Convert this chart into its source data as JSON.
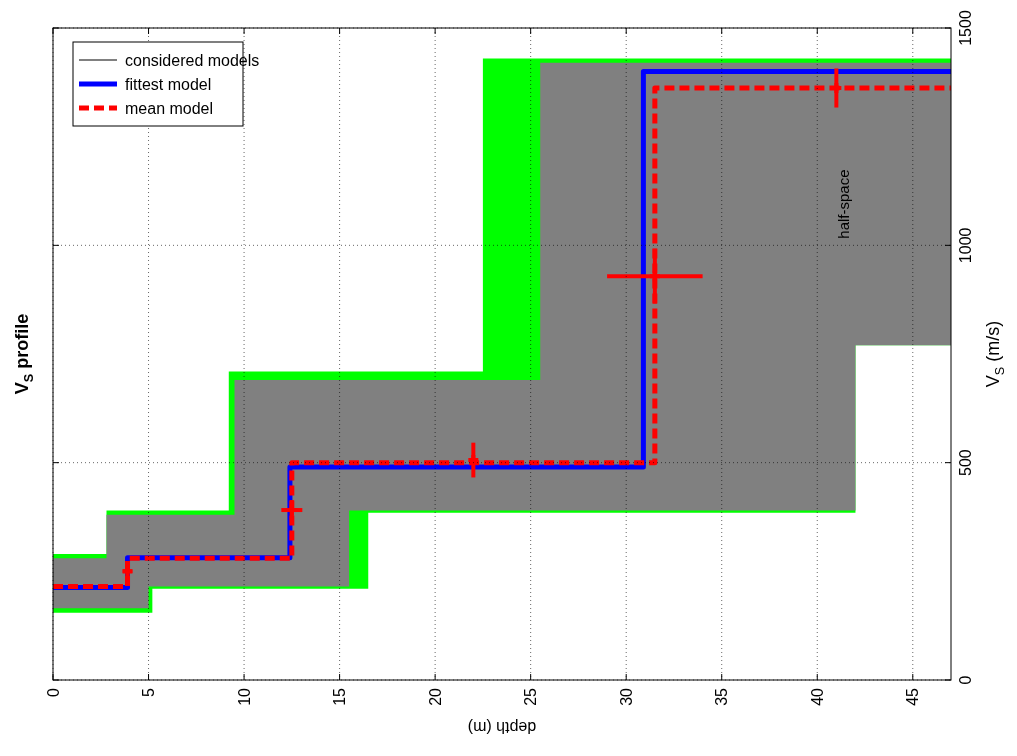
{
  "chart_data": {
    "type": "step",
    "title": "V$_{S}$ profile",
    "xlabel": "depth (m)",
    "ylabel": "V$_{S}$ (m/s)",
    "xlim": [
      0,
      47
    ],
    "xticks": [
      0,
      5,
      10,
      15,
      20,
      25,
      30,
      35,
      40,
      45
    ],
    "ylim": [
      0,
      1500
    ],
    "yticks": [
      0,
      500,
      1000,
      1500
    ],
    "grid": true,
    "legend": "top left",
    "annotations": [
      "half-space"
    ],
    "series": [
      {
        "type": "area",
        "color": "#00ff00",
        "x": [
          0,
          2.8,
          5.2,
          9.2,
          16.5,
          22.5,
          42,
          47
        ],
        "values": [
          null,
          null,
          null,
          null,
          null,
          null,
          null,
          null
        ],
        "lower": [
          155,
          155,
          210,
          210,
          385,
          385,
          770,
          770
        ],
        "upper": [
          290,
          390,
          390,
          710,
          710,
          1430,
          1430,
          1430
        ]
      },
      {
        "name": "considered models",
        "type": "area",
        "color": "#808080",
        "x": [
          0,
          2.8,
          5,
          9.5,
          15.5,
          25.5,
          42,
          47
        ],
        "values": [
          null,
          null,
          null,
          null,
          null,
          null,
          null,
          null
        ],
        "lower": [
          165,
          165,
          215,
          215,
          390,
          390,
          770,
          770
        ],
        "upper": [
          280,
          380,
          380,
          690,
          690,
          1420,
          1420,
          1420
        ]
      },
      {
        "name": "fittest model",
        "color": "#0000ff",
        "line_style": "solid",
        "x": [
          0,
          3.9,
          12.4,
          30.9,
          47
        ],
        "values": [
          213,
          281,
          490,
          1400,
          1400
        ]
      },
      {
        "name": "mean model",
        "color": "#ff0000",
        "line_style": "dashed",
        "x": [
          0,
          3.9,
          12.5,
          31.5,
          47
        ],
        "values": [
          215,
          280,
          500,
          1362,
          1362
        ]
      },
      {
        "type": "scatter",
        "color": "#ff0000",
        "marker": "cross",
        "x": [
          3.9,
          12.5,
          22,
          31.5,
          41
        ],
        "values": [
          250,
          391,
          506,
          929,
          1362
        ],
        "errors": [
          20,
          23,
          40,
          63,
          45
        ],
        "xerrors": [
          0.25,
          0.55,
          0.15,
          2.5,
          0.15
        ]
      }
    ]
  }
}
